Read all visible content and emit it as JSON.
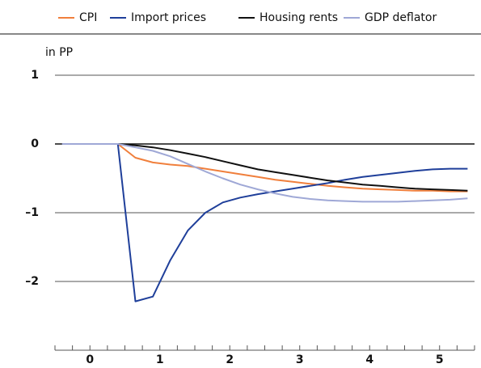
{
  "chart_data": {
    "type": "line",
    "y_label": "in PP",
    "x": [
      -0.4,
      0.4,
      0.65,
      0.9,
      1.15,
      1.4,
      1.65,
      1.9,
      2.15,
      2.4,
      2.65,
      2.9,
      3.15,
      3.4,
      3.65,
      3.9,
      4.15,
      4.4,
      4.65,
      4.9,
      5.15,
      5.4
    ],
    "series": [
      {
        "name": "CPI",
        "color": "#f07f3c",
        "values": [
          0,
          0,
          -0.2,
          -0.27,
          -0.3,
          -0.32,
          -0.36,
          -0.4,
          -0.44,
          -0.48,
          -0.52,
          -0.55,
          -0.58,
          -0.61,
          -0.63,
          -0.65,
          -0.66,
          -0.67,
          -0.68,
          -0.68,
          -0.69,
          -0.69
        ]
      },
      {
        "name": "Import prices",
        "color": "#1f3f9a",
        "values": [
          0,
          0,
          -2.29,
          -2.22,
          -1.69,
          -1.26,
          -1.0,
          -0.85,
          -0.78,
          -0.73,
          -0.69,
          -0.65,
          -0.61,
          -0.57,
          -0.52,
          -0.48,
          -0.45,
          -0.42,
          -0.39,
          -0.37,
          -0.36,
          -0.36
        ]
      },
      {
        "name": "Housing rents",
        "color": "#111111",
        "values": [
          0,
          0,
          -0.02,
          -0.05,
          -0.09,
          -0.14,
          -0.19,
          -0.25,
          -0.31,
          -0.37,
          -0.41,
          -0.45,
          -0.49,
          -0.53,
          -0.56,
          -0.59,
          -0.61,
          -0.63,
          -0.65,
          -0.66,
          -0.67,
          -0.68
        ]
      },
      {
        "name": "GDP deflator",
        "color": "#9fa8d6",
        "values": [
          0,
          0,
          -0.05,
          -0.1,
          -0.18,
          -0.29,
          -0.4,
          -0.5,
          -0.59,
          -0.66,
          -0.72,
          -0.77,
          -0.8,
          -0.82,
          -0.83,
          -0.84,
          -0.84,
          -0.84,
          -0.83,
          -0.82,
          -0.81,
          -0.79
        ]
      }
    ],
    "xlim": [
      -0.5,
      5.5
    ],
    "xticks": [
      0,
      1,
      2,
      3,
      4,
      5
    ],
    "xminorticks": [
      -0.5,
      -0.25,
      0,
      0.25,
      0.5,
      0.75,
      1,
      1.25,
      1.5,
      1.75,
      2,
      2.25,
      2.5,
      2.75,
      3,
      3.25,
      3.5,
      3.75,
      4,
      4.25,
      4.5,
      4.75,
      5,
      5.25,
      5.5
    ],
    "ylim": [
      -3,
      1.2
    ],
    "yticks": [
      1,
      0,
      {
        "value": -1,
        "label": "–1"
      },
      {
        "value": -2,
        "label": "–2"
      }
    ],
    "grid": true,
    "legend": "top"
  }
}
